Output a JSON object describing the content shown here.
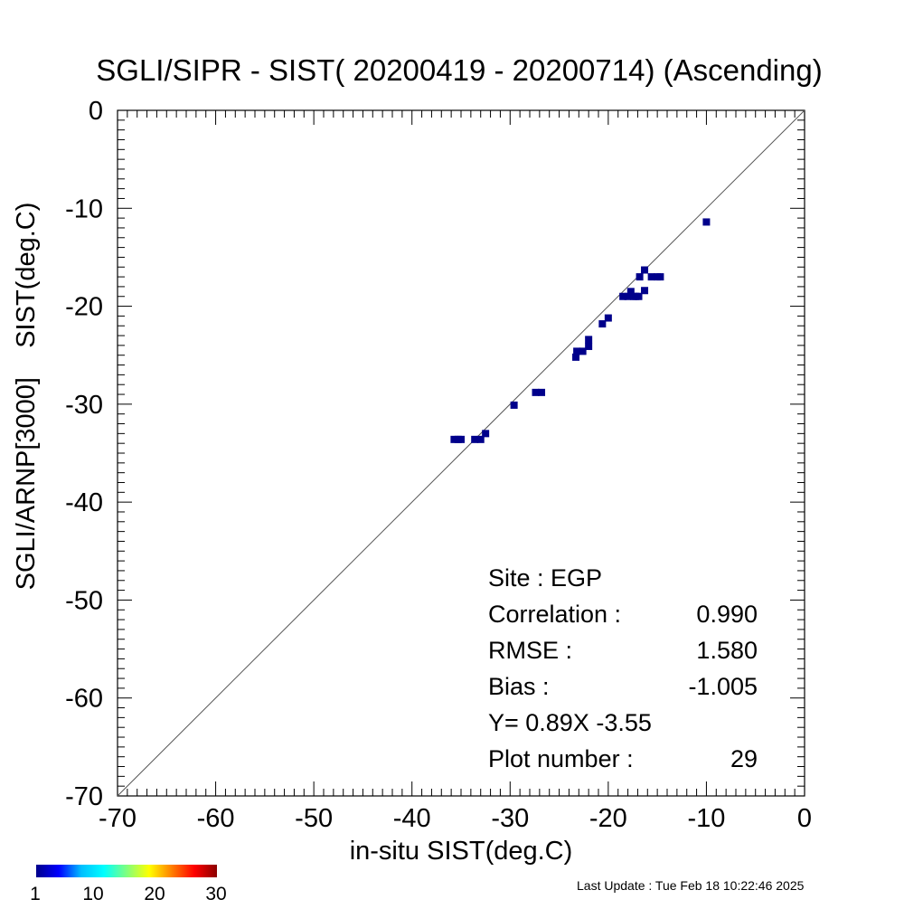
{
  "chart_data": {
    "type": "scatter",
    "title": "SGLI/SIPR - SIST( 20200419 - 20200714) (Ascending)",
    "xlabel": "in-situ SIST(deg.C)",
    "ylabel": "SGLI/ARNP[3000]    SIST(deg.C)",
    "xlim": [
      -70,
      0
    ],
    "ylim": [
      -70,
      0
    ],
    "x_ticks": [
      "-70",
      "-60",
      "-50",
      "-40",
      "-30",
      "-20",
      "-10",
      "0"
    ],
    "y_ticks": [
      "0",
      "-10",
      "-20",
      "-30",
      "-40",
      "-50",
      "-60",
      "-70"
    ],
    "reference_line": "y = x",
    "grid": false,
    "point_color": "#00008b",
    "points": [
      {
        "x": -35.7,
        "y": -33.6
      },
      {
        "x": -35.3,
        "y": -33.6
      },
      {
        "x": -35.0,
        "y": -33.6
      },
      {
        "x": -33.6,
        "y": -33.6
      },
      {
        "x": -33.0,
        "y": -33.6
      },
      {
        "x": -32.5,
        "y": -33.0
      },
      {
        "x": -29.6,
        "y": -30.1
      },
      {
        "x": -27.4,
        "y": -28.8
      },
      {
        "x": -26.8,
        "y": -28.8
      },
      {
        "x": -23.3,
        "y": -25.2
      },
      {
        "x": -23.2,
        "y": -24.6
      },
      {
        "x": -22.6,
        "y": -24.6
      },
      {
        "x": -22.0,
        "y": -24.1
      },
      {
        "x": -22.0,
        "y": -23.4
      },
      {
        "x": -20.6,
        "y": -21.8
      },
      {
        "x": -20.0,
        "y": -21.2
      },
      {
        "x": -18.5,
        "y": -19.0
      },
      {
        "x": -18.0,
        "y": -19.0
      },
      {
        "x": -17.7,
        "y": -18.5
      },
      {
        "x": -17.4,
        "y": -19.0
      },
      {
        "x": -16.9,
        "y": -19.0
      },
      {
        "x": -16.8,
        "y": -17.0
      },
      {
        "x": -16.3,
        "y": -18.4
      },
      {
        "x": -16.3,
        "y": -16.3
      },
      {
        "x": -15.6,
        "y": -17.0
      },
      {
        "x": -15.0,
        "y": -17.0
      },
      {
        "x": -14.7,
        "y": -17.0
      },
      {
        "x": -10.0,
        "y": -11.4
      },
      {
        "x": -17.2,
        "y": -19.0
      }
    ],
    "stats": [
      {
        "label": "Site : EGP",
        "value": ""
      },
      {
        "label": "Correlation :",
        "value": "0.990"
      },
      {
        "label": "RMSE :",
        "value": "1.580"
      },
      {
        "label": "Bias :",
        "value": "-1.005"
      },
      {
        "label": "Y=   0.89X  -3.55",
        "value": ""
      },
      {
        "label": "Plot number :",
        "value": "29"
      }
    ],
    "colorbar": {
      "ticks": [
        "1",
        "10",
        "20",
        "30"
      ],
      "colors": [
        "#00008b",
        "#0000ff",
        "#00bfff",
        "#00ffff",
        "#7fff7f",
        "#ffff00",
        "#ff7f00",
        "#ff0000",
        "#8b0000"
      ]
    }
  },
  "footer": {
    "last_update": "Last Update : Tue Feb 18 10:22:46 2025"
  }
}
